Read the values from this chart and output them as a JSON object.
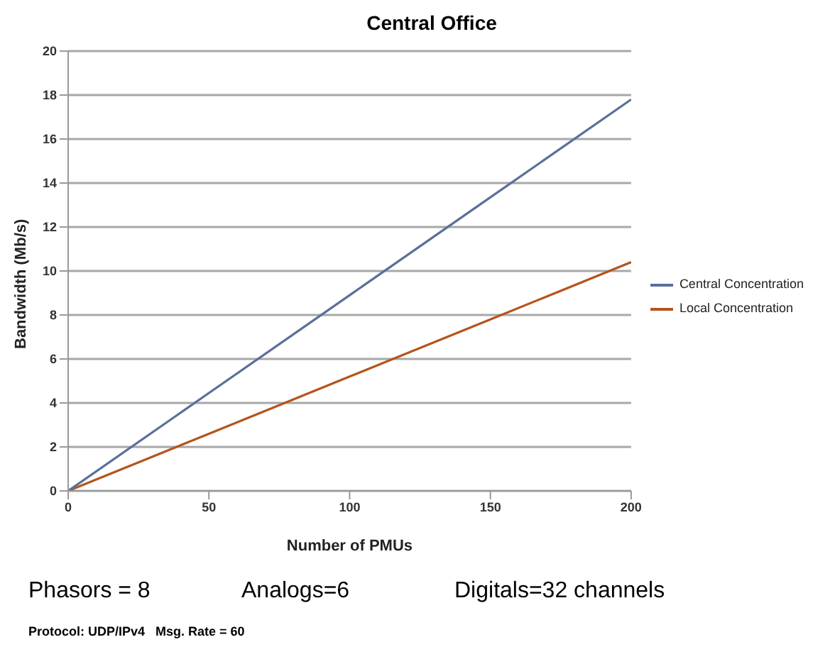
{
  "chart_data": {
    "type": "line",
    "title": "Central Office",
    "xlabel": "Number of PMUs",
    "ylabel": "Bandwidth (Mb/s)",
    "x": [
      0,
      50,
      100,
      150,
      200
    ],
    "series": [
      {
        "name": "Local Concentration",
        "color": "#b5541c",
        "values": [
          0,
          2.6,
          5.2,
          7.8,
          10.4
        ]
      },
      {
        "name": "Central Concentration",
        "color": "#5a6f9a",
        "values": [
          0,
          4.45,
          8.9,
          13.35,
          17.8
        ]
      }
    ],
    "xlim": [
      0,
      200
    ],
    "xticks": [
      0,
      50,
      100,
      150,
      200
    ],
    "ylim": [
      0,
      20
    ],
    "yticks": [
      0,
      2,
      4,
      6,
      8,
      10,
      12,
      14,
      16,
      18,
      20
    ],
    "grid": "y",
    "legend": "right",
    "marker": "none",
    "line_style": "solid",
    "annotations": [
      "Phasors = 8",
      "Analogs=6",
      "Digitals=32 channels",
      "Protocol: UDP/IPv4   Msg. Rate = 60"
    ]
  }
}
